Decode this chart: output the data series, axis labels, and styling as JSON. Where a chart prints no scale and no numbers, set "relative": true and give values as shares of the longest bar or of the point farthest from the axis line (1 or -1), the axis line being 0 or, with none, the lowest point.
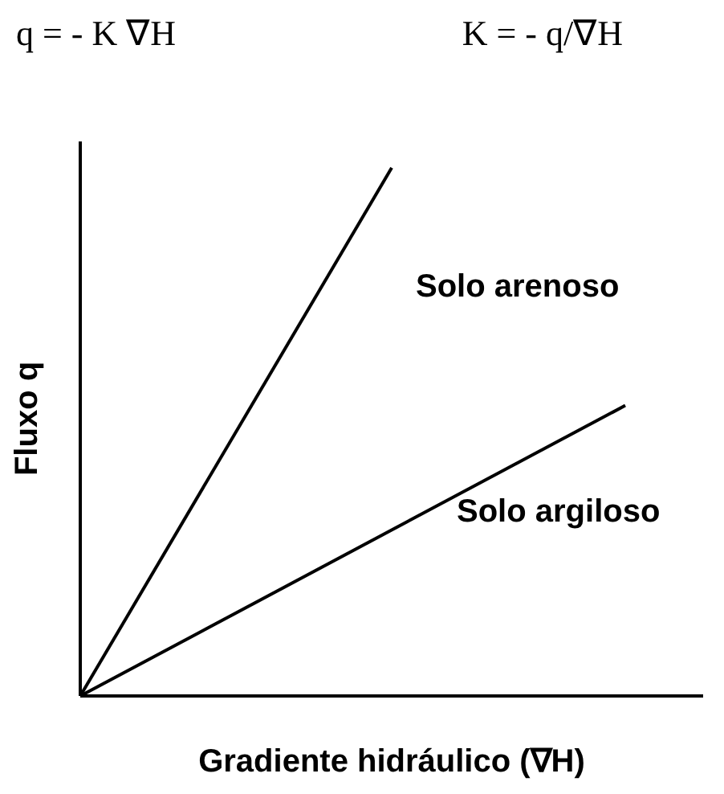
{
  "chart_data": {
    "type": "line",
    "relative": true,
    "xlabel": "Gradiente hidráulico (∇H)",
    "ylabel": "Fluxo q",
    "annotations": [
      "q = - K ∇H",
      "K = - q/∇H"
    ],
    "categories": [
      null,
      null,
      null,
      null,
      null,
      null,
      null,
      null,
      null
    ],
    "series": [
      {
        "name": "Solo arenoso",
        "color": "#000000",
        "values": [
          0,
          null,
          null,
          null,
          1,
          null,
          null,
          null,
          null
        ]
      },
      {
        "name": "Solo argiloso",
        "color": "#000000",
        "values": [
          0,
          null,
          null,
          null,
          null,
          null,
          null,
          0.55,
          null
        ]
      }
    ],
    "legend": false,
    "marker": "none",
    "line_style": "solid",
    "grid": false
  }
}
